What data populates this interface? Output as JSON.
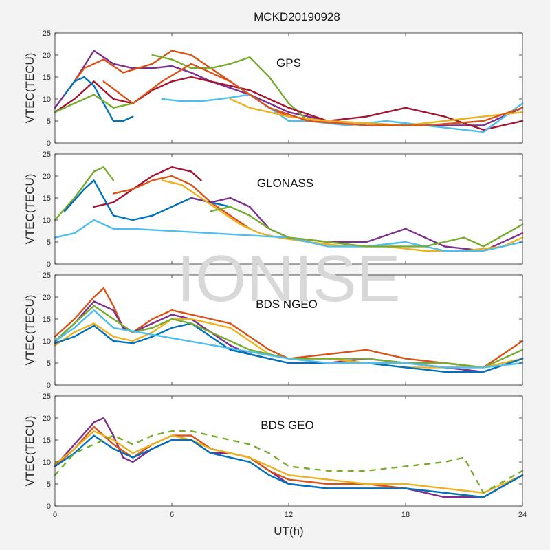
{
  "figure": {
    "title": "MCKD20190928",
    "xlabel": "UT(h)",
    "watermark": "IONISE"
  },
  "chart_data": [
    {
      "type": "line",
      "label": "GPS",
      "ylabel": "VTEC(TECU)",
      "xlim": [
        0,
        24
      ],
      "ylim": [
        0,
        25
      ],
      "xticks": [
        0,
        6,
        12,
        18,
        24
      ],
      "yticks": [
        0,
        5,
        10,
        15,
        20,
        25
      ],
      "grid": false,
      "series": [
        {
          "color": "#7E2F8E",
          "x": [
            0,
            1,
            2,
            3,
            4,
            5,
            6,
            7,
            8,
            10,
            12,
            14,
            16,
            18,
            20,
            22,
            24
          ],
          "y": [
            8,
            14,
            21,
            18,
            17,
            17,
            17.5,
            16,
            14,
            11,
            7,
            5,
            4.5,
            4,
            4,
            4,
            8
          ]
        },
        {
          "color": "#D95319",
          "x": [
            0.5,
            1.5,
            2.5,
            3.5,
            5,
            6,
            7,
            8,
            9,
            10,
            11,
            12
          ],
          "y": [
            11,
            17,
            19,
            16,
            18,
            21,
            20,
            17,
            14,
            11,
            8,
            6
          ]
        },
        {
          "color": "#77AC30",
          "x": [
            5,
            6,
            7,
            8,
            9,
            10,
            11,
            12,
            13
          ],
          "y": [
            20,
            19,
            17,
            17,
            18,
            19.5,
            15,
            9,
            5
          ]
        },
        {
          "color": "#A2142F",
          "x": [
            0,
            1,
            2,
            3,
            4,
            5,
            6,
            7,
            8,
            9,
            10,
            11,
            12,
            14,
            16,
            18,
            20,
            22,
            24
          ],
          "y": [
            7,
            10,
            14,
            10,
            9,
            12,
            14,
            15,
            14,
            13,
            12,
            10,
            8,
            5,
            6,
            8,
            6,
            3,
            5
          ]
        },
        {
          "color": "#0072BD",
          "x": [
            0.5,
            1,
            1.5,
            2,
            2.5,
            3,
            3.5,
            4
          ],
          "y": [
            11,
            14,
            15,
            13,
            9,
            5,
            5,
            6
          ]
        },
        {
          "color": "#4DBEEE",
          "x": [
            5.5,
            6.5,
            7.5,
            8.5,
            10,
            11,
            12,
            13,
            15,
            17,
            19,
            21,
            22,
            24
          ],
          "y": [
            10,
            9.5,
            9.5,
            10,
            11,
            8,
            5,
            5,
            4,
            5,
            4,
            3,
            2.5,
            9
          ]
        },
        {
          "color": "#EDB120",
          "x": [
            9,
            10,
            11,
            12,
            14,
            16,
            18,
            20,
            22,
            24
          ],
          "y": [
            10,
            8,
            7,
            6,
            5,
            4.5,
            4,
            5,
            6,
            7
          ]
        },
        {
          "color": "#77AC30",
          "x": [
            0,
            1,
            2,
            3,
            4
          ],
          "y": [
            7,
            9,
            11,
            8,
            9
          ]
        },
        {
          "color": "#D95319",
          "x": [
            2.5,
            4,
            5.5,
            7,
            9,
            11,
            13,
            16,
            19,
            22,
            24
          ],
          "y": [
            14,
            9,
            14,
            18,
            14,
            8,
            5,
            4,
            4,
            5,
            8
          ]
        }
      ]
    },
    {
      "type": "line",
      "label": "GLONASS",
      "ylabel": "VTEC(TECU)",
      "xlim": [
        0,
        24
      ],
      "ylim": [
        0,
        25
      ],
      "xticks": [
        0,
        6,
        12,
        18,
        24
      ],
      "yticks": [
        0,
        5,
        10,
        15,
        20,
        25
      ],
      "grid": false,
      "series": [
        {
          "color": "#A2142F",
          "x": [
            2,
            3,
            4,
            5,
            6,
            7,
            7.5
          ],
          "y": [
            13,
            14,
            17,
            20,
            22,
            21,
            19
          ]
        },
        {
          "color": "#77AC30",
          "x": [
            0,
            1,
            2,
            2.5,
            3
          ],
          "y": [
            10,
            15,
            21,
            22,
            19
          ]
        },
        {
          "color": "#D95319",
          "x": [
            3,
            4,
            5,
            6,
            7,
            8,
            9,
            10
          ],
          "y": [
            16,
            17,
            19,
            20,
            18,
            14,
            11,
            8
          ]
        },
        {
          "color": "#0072BD",
          "x": [
            0.5,
            1.5,
            2,
            2.5,
            3,
            4,
            5,
            6,
            7,
            8,
            9
          ],
          "y": [
            12,
            17,
            19,
            15,
            11,
            10,
            11,
            13,
            15,
            14,
            13
          ]
        },
        {
          "color": "#7E2F8E",
          "x": [
            7,
            8,
            9,
            10,
            11,
            12,
            14,
            16,
            18,
            20,
            22,
            24
          ],
          "y": [
            15,
            14,
            15,
            13,
            8,
            6,
            5,
            5,
            8,
            4,
            3,
            7
          ]
        },
        {
          "color": "#EDB120",
          "x": [
            5.5,
            6.5,
            7.5,
            8.5,
            9.5,
            10.5,
            11.5,
            13,
            15,
            17,
            19,
            21,
            23,
            24
          ],
          "y": [
            19,
            18,
            15,
            12,
            9,
            7,
            6,
            5,
            4,
            4,
            3,
            3,
            4,
            6
          ]
        },
        {
          "color": "#4DBEEE",
          "x": [
            0,
            1,
            2,
            3,
            4,
            12,
            14,
            16,
            18,
            20,
            22,
            24
          ],
          "y": [
            6,
            7,
            10,
            8,
            8,
            6,
            4,
            4,
            5,
            3,
            3,
            5
          ]
        },
        {
          "color": "#77AC30",
          "x": [
            8,
            9,
            10,
            11,
            12,
            14,
            16,
            18,
            19,
            20,
            21,
            22,
            24
          ],
          "y": [
            12,
            13,
            11,
            8,
            6,
            5,
            4,
            4,
            4,
            5,
            6,
            4,
            9
          ]
        }
      ]
    },
    {
      "type": "line",
      "label": "BDS NGEO",
      "ylabel": "VTEC(TECU)",
      "xlim": [
        0,
        24
      ],
      "ylim": [
        0,
        25
      ],
      "xticks": [
        0,
        6,
        12,
        18,
        24
      ],
      "yticks": [
        0,
        5,
        10,
        15,
        20,
        25
      ],
      "grid": false,
      "series": [
        {
          "color": "#D95319",
          "x": [
            0,
            1,
            2,
            2.5,
            3,
            3.5,
            4,
            5,
            6,
            7,
            8,
            9,
            10,
            11,
            12,
            14,
            16,
            18,
            20,
            22,
            24
          ],
          "y": [
            11,
            15,
            20,
            22,
            18,
            13,
            12,
            15,
            17,
            16,
            15,
            14,
            11,
            8,
            6,
            7,
            8,
            6,
            5,
            4,
            10
          ]
        },
        {
          "color": "#7E2F8E",
          "x": [
            0,
            1,
            2,
            3,
            3.5,
            4,
            5,
            6,
            7,
            8,
            9,
            10,
            11,
            12,
            14,
            16,
            18,
            20,
            22,
            24
          ],
          "y": [
            10,
            14,
            19,
            17,
            13,
            12,
            14,
            16,
            15,
            12,
            9,
            7,
            6,
            5,
            5,
            6,
            5,
            4,
            3,
            6
          ]
        },
        {
          "color": "#EDB120",
          "x": [
            0,
            1,
            2,
            3,
            4,
            5,
            6,
            7,
            8,
            9,
            10,
            11,
            12,
            14,
            16,
            18,
            20,
            22,
            24
          ],
          "y": [
            9,
            12,
            14,
            11,
            10,
            12,
            15,
            15,
            14,
            13,
            10,
            7,
            6,
            6,
            5,
            4,
            4,
            4,
            6
          ]
        },
        {
          "color": "#0072BD",
          "x": [
            0,
            1,
            2,
            3,
            4,
            5,
            6,
            7,
            8,
            9,
            10,
            11,
            12,
            14,
            16,
            18,
            20,
            22,
            24
          ],
          "y": [
            9.5,
            11,
            13.5,
            10,
            9.5,
            11,
            13,
            14,
            11,
            8,
            7,
            6,
            5,
            5,
            5,
            4,
            3,
            3,
            6
          ]
        },
        {
          "color": "#77AC30",
          "x": [
            0,
            1,
            2,
            3,
            4,
            5,
            6,
            7,
            8,
            9,
            10,
            11,
            12,
            14,
            16,
            18,
            20,
            22,
            24
          ],
          "y": [
            10,
            14,
            18,
            15,
            12,
            13,
            15,
            14,
            12,
            10,
            8,
            7,
            6,
            6,
            6,
            5,
            5,
            4,
            8
          ]
        },
        {
          "color": "#4DBEEE",
          "x": [
            0,
            1,
            2,
            3,
            12,
            14,
            16,
            18,
            20,
            22,
            24
          ],
          "y": [
            10,
            13,
            17,
            13,
            6,
            5,
            5,
            5,
            4,
            4,
            5
          ]
        }
      ]
    },
    {
      "type": "line",
      "label": "BDS GEO",
      "ylabel": "VTEC(TECU)",
      "xlim": [
        0,
        24
      ],
      "ylim": [
        0,
        25
      ],
      "xticks": [
        0,
        6,
        12,
        18,
        24
      ],
      "yticks": [
        0,
        5,
        10,
        15,
        20,
        25
      ],
      "grid": false,
      "series": [
        {
          "color": "#7E2F8E",
          "x": [
            0,
            1,
            2,
            2.5,
            3,
            3.5,
            4,
            5,
            6,
            7,
            8,
            9,
            10,
            11,
            12,
            14,
            16,
            18,
            20,
            22,
            24
          ],
          "y": [
            9,
            14,
            19,
            20,
            16,
            11,
            10,
            13,
            15,
            15,
            12,
            12,
            11,
            8,
            5,
            4,
            4,
            4,
            2,
            2,
            7
          ]
        },
        {
          "color": "#D95319",
          "x": [
            0,
            1,
            2,
            3,
            4,
            5,
            6,
            7,
            8,
            9,
            10,
            11,
            12,
            14,
            16,
            18,
            20,
            22,
            24
          ],
          "y": [
            9,
            13,
            18,
            14,
            11,
            14,
            16,
            16,
            13,
            12,
            11,
            8,
            6,
            5,
            5,
            4,
            3,
            2,
            7
          ]
        },
        {
          "color": "#EDB120",
          "x": [
            0,
            1,
            2,
            3,
            4,
            5,
            6,
            7,
            8,
            9,
            10,
            11,
            12,
            14,
            16,
            18,
            20,
            22,
            24
          ],
          "y": [
            9.5,
            13,
            17,
            15,
            12,
            14,
            16,
            15,
            13,
            12,
            11,
            9,
            7,
            6,
            5,
            5,
            4,
            3,
            7
          ]
        },
        {
          "color": "#0072BD",
          "x": [
            0,
            1,
            2,
            3,
            4,
            5,
            6,
            7,
            8,
            9,
            10,
            11,
            12,
            14,
            16,
            18,
            20,
            22,
            24
          ],
          "y": [
            9,
            12,
            16,
            13,
            11,
            13,
            15,
            15,
            12,
            11,
            10,
            7,
            5,
            4,
            4,
            4,
            3,
            2,
            7
          ]
        },
        {
          "color": "#77AC30",
          "dashed": true,
          "x": [
            0,
            1,
            2,
            3,
            4,
            5,
            6,
            7,
            8,
            9,
            10,
            11,
            12,
            14,
            16,
            18,
            20,
            21,
            22,
            24
          ],
          "y": [
            7,
            12,
            14,
            16,
            14,
            16,
            17,
            17,
            16,
            15,
            14,
            12,
            9,
            8,
            8,
            9,
            10,
            11,
            3,
            8
          ]
        }
      ]
    }
  ]
}
